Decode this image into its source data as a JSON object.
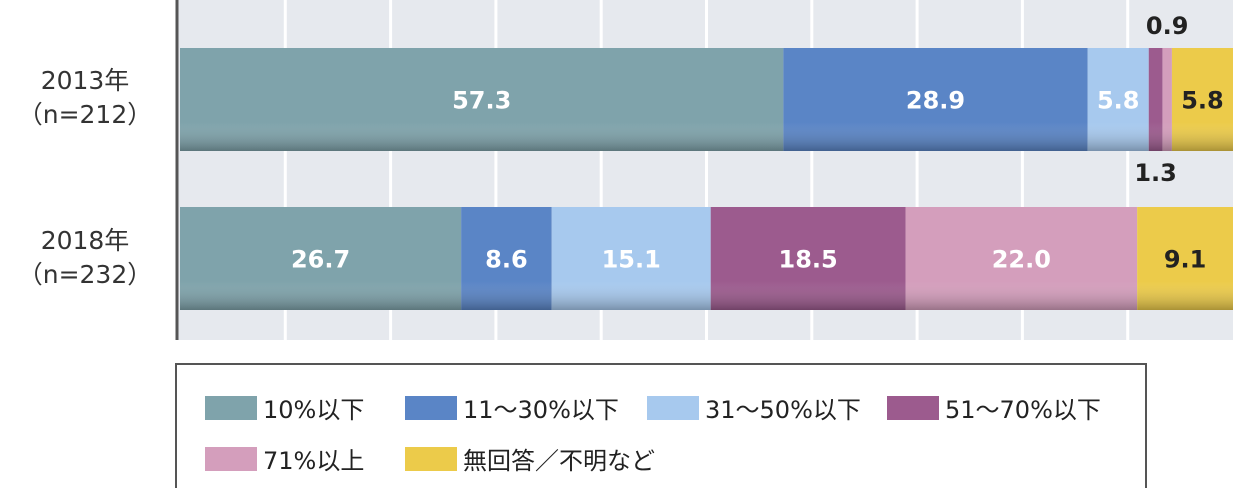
{
  "chart_data": {
    "type": "bar",
    "orientation": "horizontal",
    "stacked": true,
    "xlim": [
      0,
      100
    ],
    "grid": true,
    "legend_position": "bottom",
    "categories": [
      {
        "label": "2013年",
        "n": "（n=212）"
      },
      {
        "label": "2018年",
        "n": "（n=232）"
      }
    ],
    "series": [
      {
        "name": "10%以下",
        "color": "#7fa3ab",
        "values": [
          57.3,
          26.7
        ],
        "labels": [
          "57.3",
          "26.7"
        ]
      },
      {
        "name": "11～30%以下",
        "color": "#5a85c6",
        "values": [
          28.9,
          8.6
        ],
        "labels": [
          "28.9",
          "8.6"
        ]
      },
      {
        "name": "31～50%以下",
        "color": "#a7c9ee",
        "values": [
          5.8,
          15.1
        ],
        "labels": [
          "5.8",
          "15.1"
        ]
      },
      {
        "name": "51～70%以下",
        "color": "#9c5b8e",
        "values": [
          1.3,
          18.5
        ],
        "labels": [
          "1.3",
          "18.5"
        ]
      },
      {
        "name": "71%以上",
        "color": "#d49ebc",
        "values": [
          0.9,
          22.0
        ],
        "labels": [
          "0.9",
          "22.0"
        ]
      },
      {
        "name": "無回答／不明など",
        "color": "#eccb4a",
        "values": [
          5.8,
          9.1
        ],
        "labels": [
          "5.8",
          "9.1"
        ]
      }
    ]
  }
}
